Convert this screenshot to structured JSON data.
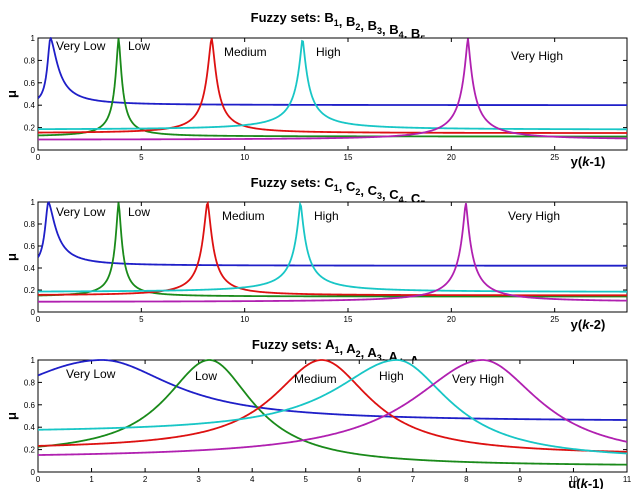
{
  "chart_data": [
    {
      "type": "line",
      "title": "Fuzzy sets: B1, B2, B3, B4, B5",
      "title_parts": [
        {
          "t": "Fuzzy sets: B"
        },
        {
          "s": "1"
        },
        {
          "t": ", B"
        },
        {
          "s": "2"
        },
        {
          "t": ", B"
        },
        {
          "s": "3"
        },
        {
          "t": ", B"
        },
        {
          "s": "4"
        },
        {
          "t": ", B"
        },
        {
          "s": "5"
        }
      ],
      "ylabel": "μ",
      "xlabel": "y(k-1)",
      "xlabel_parts": [
        {
          "t": "y("
        },
        {
          "i": "k"
        },
        {
          "t": "-1)"
        }
      ],
      "xlim": [
        0,
        28.5
      ],
      "ylim": [
        0,
        1
      ],
      "xticks": [
        0,
        5,
        10,
        15,
        20,
        25
      ],
      "xtick_labels": [
        "0",
        "5",
        "10",
        "15",
        "20",
        "25"
      ],
      "yticks": [
        0,
        0.2,
        0.4,
        0.6,
        0.8,
        1
      ],
      "ytick_labels": [
        "0",
        "0.2",
        "0.4",
        "0.6",
        "0.8",
        "1"
      ],
      "grid": false,
      "series": [
        {
          "label": "Very Low",
          "color": "#1f1fc8",
          "center": 0.6,
          "left": {
            "width": 0.18,
            "exp": 1.8,
            "floor": 0.4
          },
          "right": {
            "width": 0.45,
            "exp": 1.6,
            "floor": 0.4
          }
        },
        {
          "label": "Low",
          "color": "#1a8a1a",
          "center": 3.9,
          "left": {
            "width": 0.2,
            "exp": 1.5,
            "floor": 0.12
          },
          "right": {
            "width": 0.2,
            "exp": 1.5,
            "floor": 0.12
          }
        },
        {
          "label": "Medium",
          "color": "#dd1111",
          "center": 8.4,
          "left": {
            "width": 0.3,
            "exp": 1.5,
            "floor": 0.15
          },
          "right": {
            "width": 0.3,
            "exp": 1.5,
            "floor": 0.15
          }
        },
        {
          "label": "High",
          "color": "#18c6c6",
          "center": 12.8,
          "left": {
            "width": 0.3,
            "exp": 1.3,
            "floor": 0.18
          },
          "right": {
            "width": 0.3,
            "exp": 1.3,
            "floor": 0.18
          }
        },
        {
          "label": "Very High",
          "color": "#b020b0",
          "center": 20.8,
          "left": {
            "width": 0.3,
            "exp": 1.3,
            "floor": 0.09
          },
          "right": {
            "width": 0.3,
            "exp": 1.3,
            "floor": 0.09
          }
        }
      ]
    },
    {
      "type": "line",
      "title": "Fuzzy sets: C1, C2, C3, C4, C5",
      "title_parts": [
        {
          "t": "Fuzzy sets: C"
        },
        {
          "s": "1"
        },
        {
          "t": ", C"
        },
        {
          "s": "2"
        },
        {
          "t": ", C"
        },
        {
          "s": "3"
        },
        {
          "t": ", C"
        },
        {
          "s": "4"
        },
        {
          "t": ", C"
        },
        {
          "s": "5"
        }
      ],
      "ylabel": "μ",
      "xlabel": "y(k-2)",
      "xlabel_parts": [
        {
          "t": "y("
        },
        {
          "i": "k"
        },
        {
          "t": "-2)"
        }
      ],
      "xlim": [
        0,
        28.5
      ],
      "ylim": [
        0,
        1
      ],
      "xticks": [
        0,
        5,
        10,
        15,
        20,
        25
      ],
      "xtick_labels": [
        "0",
        "5",
        "10",
        "15",
        "20",
        "25"
      ],
      "yticks": [
        0,
        0.2,
        0.4,
        0.6,
        0.8,
        1
      ],
      "ytick_labels": [
        "0",
        "0.2",
        "0.4",
        "0.6",
        "0.8",
        "1"
      ],
      "grid": false,
      "series": [
        {
          "label": "Very Low",
          "color": "#1f1fc8",
          "center": 0.5,
          "left": {
            "width": 0.2,
            "exp": 1.8,
            "floor": 0.4
          },
          "right": {
            "width": 0.45,
            "exp": 1.6,
            "floor": 0.42
          }
        },
        {
          "label": "Low",
          "color": "#1a8a1a",
          "center": 3.9,
          "left": {
            "width": 0.2,
            "exp": 1.5,
            "floor": 0.14
          },
          "right": {
            "width": 0.2,
            "exp": 1.5,
            "floor": 0.14
          }
        },
        {
          "label": "Medium",
          "color": "#dd1111",
          "center": 8.2,
          "left": {
            "width": 0.3,
            "exp": 1.5,
            "floor": 0.15
          },
          "right": {
            "width": 0.3,
            "exp": 1.5,
            "floor": 0.15
          }
        },
        {
          "label": "High",
          "color": "#18c6c6",
          "center": 12.7,
          "left": {
            "width": 0.3,
            "exp": 1.3,
            "floor": 0.18
          },
          "right": {
            "width": 0.3,
            "exp": 1.3,
            "floor": 0.18
          }
        },
        {
          "label": "Very High",
          "color": "#b020b0",
          "center": 20.7,
          "left": {
            "width": 0.3,
            "exp": 1.3,
            "floor": 0.09
          },
          "right": {
            "width": 0.3,
            "exp": 1.3,
            "floor": 0.09
          }
        }
      ]
    },
    {
      "type": "line",
      "title": "Fuzzy sets: A1, A2, A3, A4, A5",
      "title_parts": [
        {
          "t": "Fuzzy sets: A"
        },
        {
          "s": "1"
        },
        {
          "t": ", A"
        },
        {
          "s": "2"
        },
        {
          "t": ", A"
        },
        {
          "s": "3"
        },
        {
          "t": ", A"
        },
        {
          "s": "4"
        },
        {
          "t": ", A"
        },
        {
          "s": "5"
        }
      ],
      "ylabel": "μ",
      "xlabel": "u(k-1)",
      "xlabel_parts": [
        {
          "t": "u("
        },
        {
          "i": "k"
        },
        {
          "t": "-1)"
        }
      ],
      "xlim": [
        0,
        11
      ],
      "ylim": [
        0,
        1
      ],
      "xticks": [
        0,
        1,
        2,
        3,
        4,
        5,
        6,
        7,
        8,
        9,
        10,
        11
      ],
      "xtick_labels": [
        "0",
        "1",
        "2",
        "3",
        "4",
        "5",
        "6",
        "7",
        "8",
        "9",
        "10",
        "11"
      ],
      "yticks": [
        0,
        0.2,
        0.4,
        0.6,
        0.8,
        1
      ],
      "ytick_labels": [
        "0",
        "0.2",
        "0.4",
        "0.6",
        "0.8",
        "1"
      ],
      "grid": false,
      "series": [
        {
          "label": "Very Low",
          "color": "#1f1fc8",
          "center": 1.2,
          "left": {
            "width": 3.0,
            "exp": 2.0,
            "floor": 0.0
          },
          "right": {
            "width": 1.6,
            "exp": 2.0,
            "floor": 0.45
          }
        },
        {
          "label": "Low",
          "color": "#1a8a1a",
          "center": 3.2,
          "left": {
            "width": 1.0,
            "exp": 2.0,
            "floor": 0.15
          },
          "right": {
            "width": 1.0,
            "exp": 2.0,
            "floor": 0.05
          }
        },
        {
          "label": "Medium",
          "color": "#dd1111",
          "center": 5.3,
          "left": {
            "width": 1.1,
            "exp": 2.0,
            "floor": 0.2
          },
          "right": {
            "width": 1.1,
            "exp": 2.0,
            "floor": 0.15
          }
        },
        {
          "label": "High",
          "color": "#18c6c6",
          "center": 6.7,
          "left": {
            "width": 1.4,
            "exp": 2.0,
            "floor": 0.35
          },
          "right": {
            "width": 1.2,
            "exp": 2.0,
            "floor": 0.1
          }
        },
        {
          "label": "Very High",
          "color": "#b020b0",
          "center": 8.3,
          "left": {
            "width": 1.6,
            "exp": 2.0,
            "floor": 0.12
          },
          "right": {
            "width": 1.3,
            "exp": 2.0,
            "floor": 0.1
          }
        }
      ]
    }
  ]
}
